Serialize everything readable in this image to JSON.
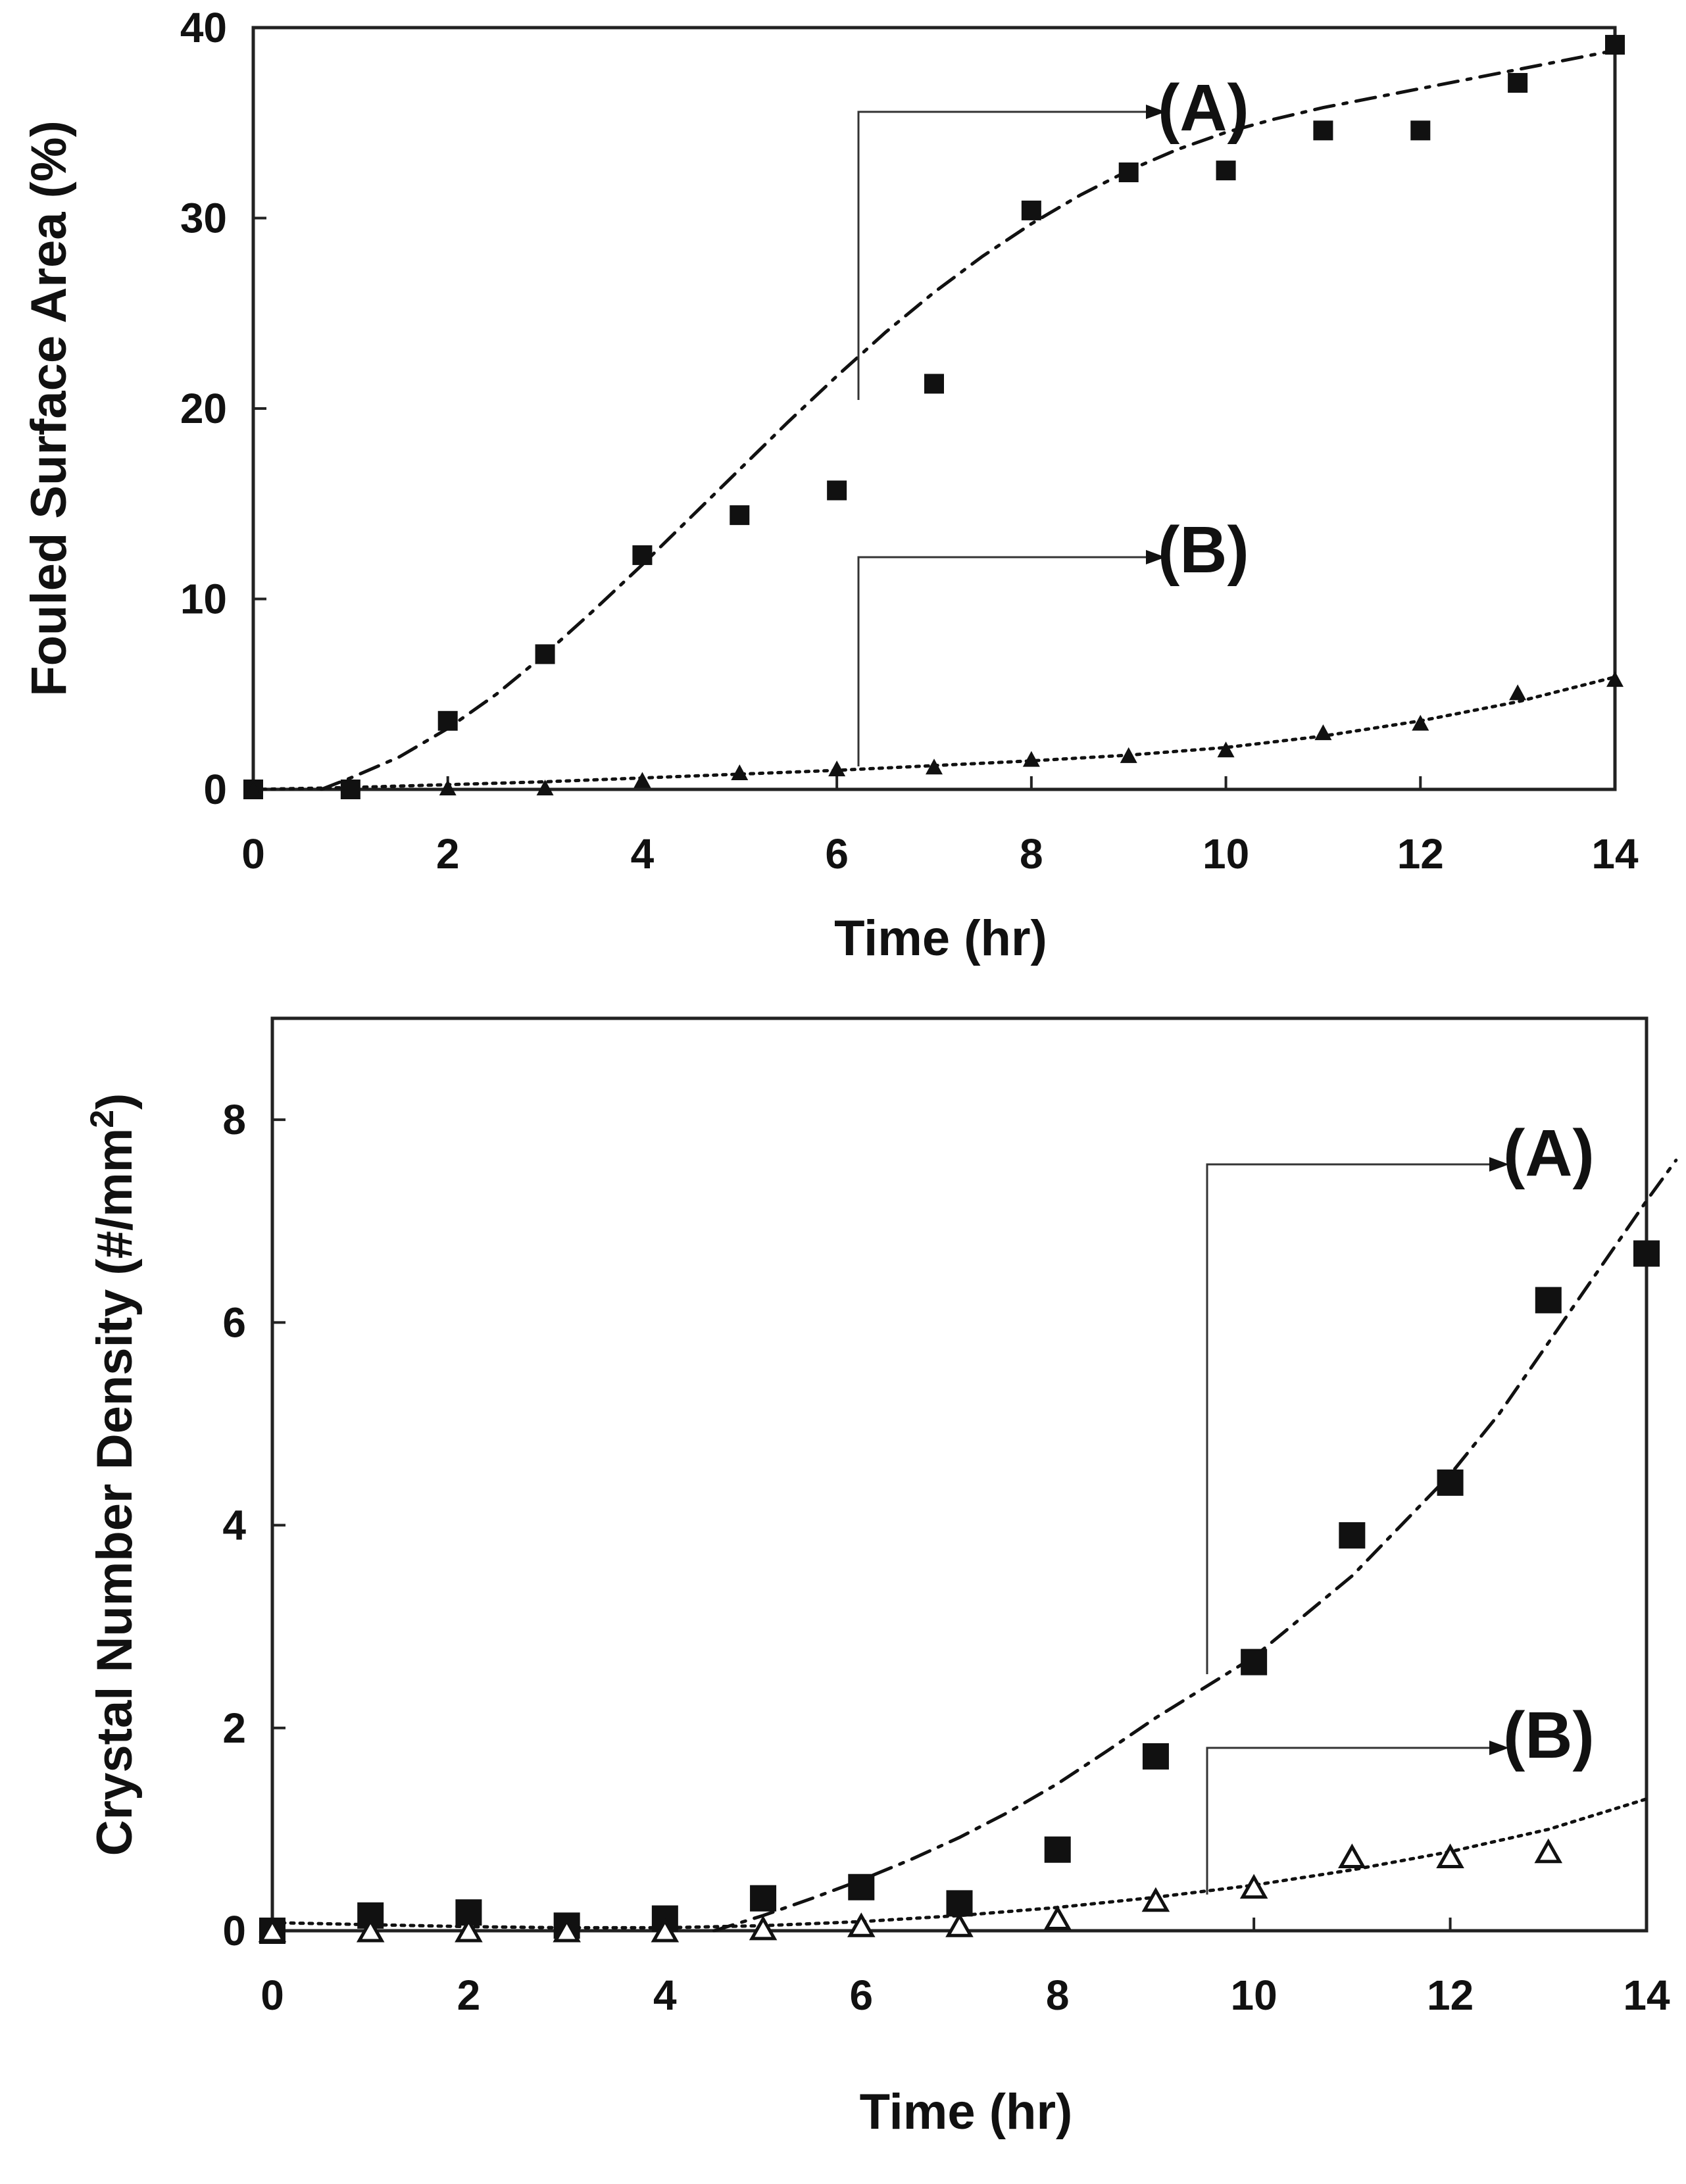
{
  "chart_data": [
    {
      "type": "scatter",
      "title": "",
      "xlabel": "Time (hr)",
      "ylabel": "Fouled Surface Area (%)",
      "xlim": [
        0,
        14
      ],
      "ylim": [
        0,
        40
      ],
      "xticks": [
        "0",
        "2",
        "4",
        "6",
        "8",
        "10",
        "12",
        "14"
      ],
      "yticks": [
        "0",
        "10",
        "20",
        "30",
        "40"
      ],
      "grid": false,
      "series": [
        {
          "name": "(A)",
          "marker": "filled-square",
          "fit_style": "dash-dot",
          "x": [
            0,
            1,
            2,
            3,
            4,
            5,
            6,
            7,
            8,
            9,
            10,
            11,
            12,
            13,
            14
          ],
          "values": [
            0,
            0,
            3.6,
            7.1,
            12.3,
            14.4,
            15.7,
            21.3,
            30.4,
            32.4,
            32.5,
            34.6,
            34.6,
            37.1,
            39.1
          ],
          "fit_x": [
            0.7,
            1,
            1.5,
            2,
            2.5,
            3,
            3.5,
            4,
            4.5,
            5,
            5.5,
            6,
            6.5,
            7,
            7.5,
            8,
            8.5,
            9,
            9.5,
            10,
            10.5,
            11,
            11.5,
            12,
            12.5,
            13,
            13.5,
            14
          ],
          "fit_y": [
            0,
            0.6,
            1.7,
            3.2,
            5.0,
            7.1,
            9.4,
            11.8,
            14.3,
            16.8,
            19.3,
            21.7,
            24.0,
            26.1,
            28.0,
            29.7,
            31.2,
            32.5,
            33.6,
            34.5,
            35.2,
            35.8,
            36.3,
            36.8,
            37.3,
            37.8,
            38.3,
            38.8
          ]
        },
        {
          "name": "(B)",
          "marker": "filled-triangle",
          "fit_style": "dotted",
          "x": [
            0,
            1,
            2,
            3,
            4,
            5,
            6,
            7,
            8,
            9,
            10,
            11,
            12,
            13,
            14
          ],
          "values": [
            0,
            0.05,
            0.1,
            0.1,
            0.5,
            0.9,
            1.1,
            1.2,
            1.6,
            1.8,
            2.1,
            3.0,
            3.5,
            5.1,
            5.8
          ],
          "fit_x": [
            0,
            1,
            2,
            3,
            4,
            5,
            6,
            7,
            8,
            9,
            10,
            11,
            12,
            13,
            14
          ],
          "fit_y": [
            0,
            0.1,
            0.25,
            0.4,
            0.6,
            0.8,
            1.0,
            1.25,
            1.5,
            1.8,
            2.2,
            2.8,
            3.6,
            4.6,
            5.9
          ]
        }
      ]
    },
    {
      "type": "scatter",
      "title": "",
      "xlabel": "Time (hr)",
      "ylabel": "Crystal Number Density (#/mm",
      "ylabel_superscript": "2",
      "ylabel_close": ")",
      "xlim": [
        0,
        14
      ],
      "ylim": [
        0,
        9
      ],
      "xticks": [
        "0",
        "2",
        "4",
        "6",
        "8",
        "10",
        "12",
        "14"
      ],
      "yticks": [
        "0",
        "2",
        "4",
        "6",
        "8"
      ],
      "grid": false,
      "series": [
        {
          "name": "(A)",
          "marker": "filled-square",
          "fit_style": "dash-dot",
          "x": [
            0,
            1,
            2,
            3,
            4,
            5,
            6,
            7,
            8,
            9,
            10,
            11,
            12,
            13,
            14
          ],
          "values": [
            0,
            0.15,
            0.18,
            0.05,
            0.12,
            0.32,
            0.43,
            0.27,
            0.8,
            1.72,
            2.65,
            3.9,
            4.42,
            6.22,
            6.68
          ],
          "fit_x": [
            4.5,
            5,
            5.5,
            6,
            6.5,
            7,
            7.5,
            8,
            8.5,
            9,
            9.5,
            10,
            10.5,
            11,
            11.5,
            12,
            12.5,
            13,
            13.5,
            14,
            14.3
          ],
          "fit_y": [
            0,
            0.15,
            0.32,
            0.5,
            0.7,
            0.92,
            1.17,
            1.45,
            1.77,
            2.1,
            2.4,
            2.7,
            3.1,
            3.5,
            4.0,
            4.5,
            5.1,
            5.8,
            6.5,
            7.2,
            7.6
          ]
        },
        {
          "name": "(B)",
          "marker": "open-triangle",
          "fit_style": "dotted",
          "x": [
            0,
            1,
            2,
            3,
            4,
            5,
            6,
            7,
            8,
            9,
            10,
            11,
            12,
            13
          ],
          "values": [
            0,
            0,
            0,
            0,
            0,
            0.02,
            0.05,
            0.05,
            0.12,
            0.3,
            0.43,
            0.73,
            0.73,
            0.78
          ],
          "fit_x": [
            0,
            1,
            2,
            3,
            4,
            5,
            6,
            7,
            8,
            9,
            10,
            11,
            12,
            13,
            14
          ],
          "fit_y": [
            0.08,
            0.06,
            0.04,
            0.03,
            0.03,
            0.05,
            0.09,
            0.15,
            0.23,
            0.33,
            0.45,
            0.6,
            0.78,
            1.0,
            1.3
          ]
        }
      ]
    }
  ]
}
